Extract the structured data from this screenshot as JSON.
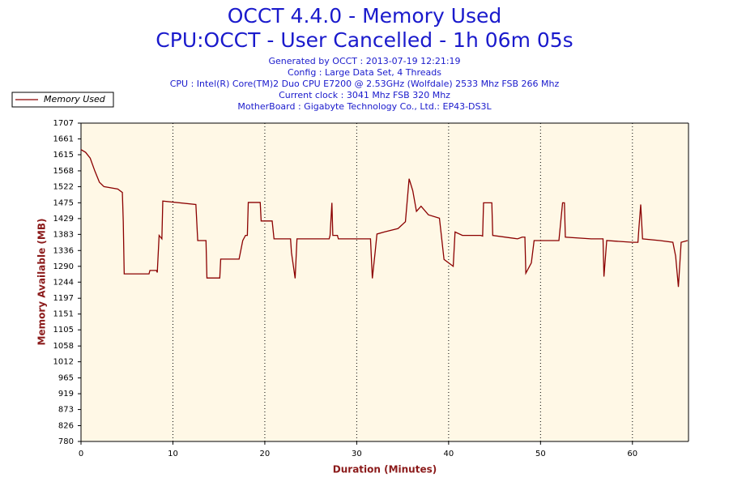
{
  "chart_data": {
    "type": "line",
    "title": "OCCT 4.4.0 - Memory Used",
    "subtitle": "CPU:OCCT - User Cancelled - 1h 06m 05s",
    "info": [
      "Generated by OCCT : 2013-07-19 12:21:19",
      "Config : Large Data Set, 4 Threads",
      "CPU : Intel(R) Core(TM)2 Duo CPU E7200 @ 2.53GHz (Wolfdale) 2533 Mhz FSB 266 Mhz",
      "Current clock : 3041 Mhz FSB 320 Mhz",
      "MotherBoard : Gigabyte Technology Co., Ltd.: EP43-DS3L"
    ],
    "x_label": "Duration (Minutes)",
    "y_label": "Memory Available (MB)",
    "xlim": [
      0,
      66.1
    ],
    "xticks": [
      0,
      10,
      20,
      30,
      40,
      50,
      60
    ],
    "ylim": [
      780,
      1707
    ],
    "yticks": [
      780,
      826,
      873,
      919,
      965,
      1012,
      1058,
      1105,
      1151,
      1197,
      1244,
      1290,
      1336,
      1383,
      1429,
      1475,
      1522,
      1568,
      1615,
      1661,
      1707
    ],
    "grid": "x",
    "legend": "top-left",
    "series": [
      {
        "name": "Memory Used",
        "color": "#8b0000",
        "x": [
          0,
          0.5,
          1,
          1.5,
          2,
          2.5,
          4,
          4.5,
          4.6,
          4.7,
          7.4,
          7.5,
          8.2,
          8.3,
          8.5,
          8.8,
          8.9,
          12.5,
          12.7,
          13.6,
          13.7,
          15.1,
          15.2,
          17.2,
          17.6,
          17.9,
          18.1,
          18.2,
          19.5,
          19.6,
          20.8,
          21,
          22.8,
          22.9,
          23.3,
          23.5,
          27,
          27.1,
          27.3,
          27.4,
          27.9,
          28,
          31.5,
          31.7,
          32,
          32.2,
          33,
          34.5,
          35.3,
          35.7,
          36.1,
          36.5,
          37,
          37.8,
          39,
          39.5,
          40.5,
          40.7,
          41.5,
          43.5,
          43.7,
          43.8,
          44.7,
          44.8,
          47.5,
          48,
          48.3,
          48.4,
          49,
          49.3,
          52,
          52.2,
          52.4,
          52.6,
          52.7,
          55.5,
          56.5,
          56.8,
          56.9,
          57.2,
          60,
          60.6,
          60.7,
          60.9,
          61.1,
          63,
          64.4,
          64.7,
          65,
          65.3,
          66
        ],
        "values": [
          1630,
          1622,
          1605,
          1568,
          1535,
          1522,
          1515,
          1505,
          1420,
          1268,
          1268,
          1278,
          1278,
          1272,
          1380,
          1370,
          1480,
          1470,
          1365,
          1365,
          1256,
          1256,
          1311,
          1311,
          1365,
          1380,
          1380,
          1476,
          1476,
          1422,
          1422,
          1370,
          1370,
          1330,
          1255,
          1370,
          1370,
          1380,
          1475,
          1380,
          1380,
          1370,
          1370,
          1255,
          1330,
          1384,
          1390,
          1400,
          1420,
          1545,
          1510,
          1450,
          1465,
          1440,
          1430,
          1310,
          1290,
          1390,
          1380,
          1380,
          1378,
          1475,
          1475,
          1380,
          1370,
          1375,
          1375,
          1270,
          1300,
          1365,
          1365,
          1420,
          1475,
          1475,
          1375,
          1370,
          1370,
          1370,
          1260,
          1365,
          1360,
          1360,
          1400,
          1470,
          1370,
          1365,
          1360,
          1320,
          1230,
          1360,
          1365
        ]
      }
    ]
  }
}
